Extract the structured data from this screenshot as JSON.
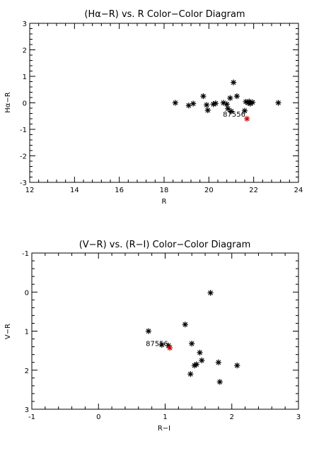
{
  "chart_data": [
    {
      "type": "scatter",
      "title": "(Hα−R) vs. R Color−Color Diagram",
      "xlabel": "R",
      "ylabel": "Hα−R",
      "xlim": [
        12,
        24
      ],
      "ylim": [
        -3,
        3
      ],
      "x_inverted": false,
      "y_inverted": false,
      "xticks": [
        12,
        14,
        16,
        18,
        20,
        22,
        24
      ],
      "yticks": [
        -3,
        -2,
        -1,
        0,
        1,
        2,
        3
      ],
      "marker": "asterisk",
      "marker_color": "#000000",
      "highlight_color": "#cc0000",
      "points": [
        {
          "x": 18.5,
          "y": 0.0
        },
        {
          "x": 19.1,
          "y": -0.1
        },
        {
          "x": 19.3,
          "y": -0.03
        },
        {
          "x": 19.75,
          "y": 0.25
        },
        {
          "x": 19.9,
          "y": -0.08
        },
        {
          "x": 19.95,
          "y": -0.28
        },
        {
          "x": 20.2,
          "y": -0.05
        },
        {
          "x": 20.3,
          "y": -0.02
        },
        {
          "x": 20.65,
          "y": 0.0
        },
        {
          "x": 20.8,
          "y": -0.05
        },
        {
          "x": 20.85,
          "y": -0.22
        },
        {
          "x": 20.95,
          "y": 0.18
        },
        {
          "x": 21.0,
          "y": -0.32
        },
        {
          "x": 21.1,
          "y": 0.77
        },
        {
          "x": 21.25,
          "y": 0.25
        },
        {
          "x": 21.6,
          "y": -0.3
        },
        {
          "x": 21.65,
          "y": 0.04
        },
        {
          "x": 21.75,
          "y": 0.0
        },
        {
          "x": 21.8,
          "y": 0.05
        },
        {
          "x": 21.85,
          "y": -0.03
        },
        {
          "x": 21.95,
          "y": 0.02
        },
        {
          "x": 23.1,
          "y": 0.0
        }
      ],
      "highlight": {
        "x": 21.7,
        "y": -0.6,
        "label": "87556"
      }
    },
    {
      "type": "scatter",
      "title": "(V−R) vs. (R−I) Color−Color Diagram",
      "xlabel": "R−I",
      "ylabel": "V−R",
      "xlim": [
        -1,
        3
      ],
      "ylim": [
        -1,
        3
      ],
      "x_inverted": false,
      "y_inverted": true,
      "xticks": [
        -1,
        0,
        1,
        2,
        3
      ],
      "yticks": [
        -1,
        0,
        1,
        2,
        3
      ],
      "marker": "asterisk",
      "marker_color": "#000000",
      "highlight_color": "#cc0000",
      "points": [
        {
          "x": 0.75,
          "y": 1.0
        },
        {
          "x": 0.95,
          "y": 1.35
        },
        {
          "x": 1.05,
          "y": 1.37
        },
        {
          "x": 1.3,
          "y": 0.83
        },
        {
          "x": 1.38,
          "y": 2.1
        },
        {
          "x": 1.4,
          "y": 1.32
        },
        {
          "x": 1.44,
          "y": 1.88
        },
        {
          "x": 1.47,
          "y": 1.85
        },
        {
          "x": 1.52,
          "y": 1.55
        },
        {
          "x": 1.55,
          "y": 1.75
        },
        {
          "x": 1.68,
          "y": 0.02
        },
        {
          "x": 1.8,
          "y": 1.8
        },
        {
          "x": 1.82,
          "y": 2.3
        },
        {
          "x": 2.08,
          "y": 1.88
        }
      ],
      "highlight": {
        "x": 1.07,
        "y": 1.43,
        "label": "87556"
      }
    }
  ]
}
